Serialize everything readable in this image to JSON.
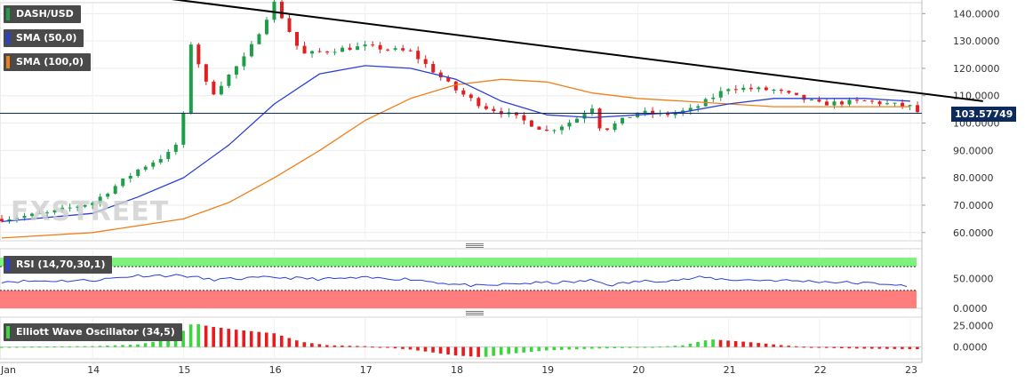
{
  "legend": {
    "symbol": "DASH/USD",
    "sma50": "SMA (50,0)",
    "sma100": "SMA (100,0)",
    "rsi": "RSI (14,70,30,1)",
    "ewo": "Elliott Wave Oscillator (34,5)"
  },
  "watermark": "FXSTREET",
  "current_price": "103.57749",
  "colors": {
    "up": "#1e9e4a",
    "down": "#e02020",
    "sma50": "#2a3fd6",
    "sma100": "#f07f1a",
    "trendline": "#000000",
    "rsi_line": "#2a3fd6",
    "rsi_over": "#7df27d",
    "rsi_under": "#ff7d7d",
    "ewo_up": "#3ad63a",
    "ewo_down": "#e81c1c",
    "price_line": "#0d2a5c"
  },
  "chart_data": [
    {
      "type": "candlestick",
      "title": "DASH/USD",
      "x_labels": [
        "Jan",
        "14",
        "15",
        "16",
        "17",
        "18",
        "19",
        "20",
        "21",
        "22",
        "23"
      ],
      "y_ticks": [
        "140.0000",
        "130.0000",
        "120.0000",
        "110.0000",
        "100.0000",
        "90.0000",
        "80.0000",
        "70.0000",
        "60.0000"
      ],
      "ylim": [
        57,
        144
      ],
      "grid": true,
      "last_price": 103.57749,
      "series": [
        {
          "name": "SMA (50,0)",
          "points": [
            [
              0,
              64
            ],
            [
              1,
              67
            ],
            [
              1.5,
              73
            ],
            [
              2,
              80
            ],
            [
              2.5,
              92
            ],
            [
              3,
              107
            ],
            [
              3.5,
              118
            ],
            [
              4,
              121
            ],
            [
              4.5,
              120
            ],
            [
              5,
              116
            ],
            [
              5.5,
              108
            ],
            [
              6,
              103
            ],
            [
              6.5,
              102
            ],
            [
              7,
              103
            ],
            [
              7.5,
              104
            ],
            [
              8,
              107
            ],
            [
              8.5,
              109
            ],
            [
              9,
              109
            ],
            [
              9.5,
              109
            ],
            [
              10,
              108
            ]
          ]
        },
        {
          "name": "SMA (100,0)",
          "points": [
            [
              0,
              58
            ],
            [
              1,
              60
            ],
            [
              2,
              65
            ],
            [
              2.5,
              71
            ],
            [
              3,
              80
            ],
            [
              3.5,
              90
            ],
            [
              4,
              101
            ],
            [
              4.5,
              109
            ],
            [
              5,
              114
            ],
            [
              5.5,
              116
            ],
            [
              6,
              115
            ],
            [
              6.5,
              111
            ],
            [
              7,
              109
            ],
            [
              7.5,
              108
            ],
            [
              8,
              107
            ],
            [
              8.5,
              106
            ],
            [
              9,
              106
            ],
            [
              9.5,
              106
            ],
            [
              10,
              106
            ]
          ]
        }
      ],
      "trendline": [
        [
          1.7,
          146
        ],
        [
          10.8,
          108
        ]
      ],
      "candles_description_points": [
        [
          0,
          65
        ],
        [
          0.5,
          67
        ],
        [
          1,
          71
        ],
        [
          1.5,
          83
        ],
        [
          1.9,
          90
        ],
        [
          2,
          103
        ],
        [
          2.05,
          132
        ],
        [
          2.3,
          110
        ],
        [
          2.7,
          125
        ],
        [
          3,
          144
        ],
        [
          3.3,
          125
        ],
        [
          3.7,
          127
        ],
        [
          4,
          128
        ],
        [
          4.5,
          126
        ],
        [
          5,
          112
        ],
        [
          5.3,
          106
        ],
        [
          5.6,
          103
        ],
        [
          6,
          97
        ],
        [
          6.3,
          101
        ],
        [
          6.5,
          106
        ],
        [
          6.6,
          97
        ],
        [
          7,
          104
        ],
        [
          7.3,
          103
        ],
        [
          7.6,
          105
        ],
        [
          8,
          113
        ],
        [
          8.5,
          112
        ],
        [
          9,
          107
        ],
        [
          9.5,
          108
        ],
        [
          10,
          106
        ],
        [
          10.1,
          103.5
        ]
      ]
    },
    {
      "type": "line",
      "title": "RSI (14,70,30,1)",
      "y_ticks": [
        "50.0000",
        "0.0000"
      ],
      "ylim": [
        0,
        100
      ],
      "levels": [
        70,
        30
      ],
      "points": [
        [
          0,
          45
        ],
        [
          1,
          47
        ],
        [
          1.5,
          55
        ],
        [
          2,
          55
        ],
        [
          2.3,
          48
        ],
        [
          3,
          52
        ],
        [
          3.5,
          49
        ],
        [
          4,
          51
        ],
        [
          4.5,
          49
        ],
        [
          5,
          40
        ],
        [
          5.3,
          37
        ],
        [
          5.6,
          41
        ],
        [
          6,
          43
        ],
        [
          6.3,
          44
        ],
        [
          6.5,
          47
        ],
        [
          6.7,
          39
        ],
        [
          7,
          45
        ],
        [
          7.5,
          48
        ],
        [
          7.7,
          52
        ],
        [
          8,
          48
        ],
        [
          8.5,
          47
        ],
        [
          9,
          45
        ],
        [
          9.5,
          42
        ],
        [
          9.8,
          41
        ],
        [
          10,
          34
        ]
      ]
    },
    {
      "type": "histogram",
      "title": "Elliott Wave Oscillator (34,5)",
      "y_ticks": [
        "25.0000",
        "0.0000"
      ],
      "ylim": [
        -14,
        35
      ],
      "points": [
        [
          0,
          0
        ],
        [
          1,
          1
        ],
        [
          1.5,
          3
        ],
        [
          1.9,
          10
        ],
        [
          2.1,
          28
        ],
        [
          2.3,
          24
        ],
        [
          2.6,
          20
        ],
        [
          3,
          16
        ],
        [
          3.3,
          6
        ],
        [
          3.6,
          2
        ],
        [
          4,
          1
        ],
        [
          4.5,
          -3
        ],
        [
          5,
          -10
        ],
        [
          5.3,
          -12
        ],
        [
          5.6,
          -8
        ],
        [
          6,
          -4
        ],
        [
          6.5,
          -2
        ],
        [
          7,
          -1
        ],
        [
          7.5,
          2
        ],
        [
          7.8,
          9
        ],
        [
          8.2,
          6
        ],
        [
          8.6,
          2
        ],
        [
          9,
          -1
        ],
        [
          9.5,
          -2
        ],
        [
          10,
          -2.5
        ]
      ]
    }
  ]
}
